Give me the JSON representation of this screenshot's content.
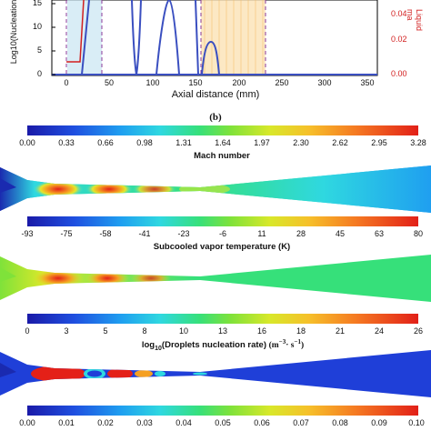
{
  "top_plot": {
    "y_ticks_left": [
      "15",
      "10",
      "5",
      "0"
    ],
    "y_label_left": "Log10(Nucleation",
    "y_ticks_right": [
      "0.04",
      "0.02",
      "0.00"
    ],
    "y_label_right": "Liquid ma",
    "x_ticks": [
      "0",
      "50",
      "100",
      "150",
      "200",
      "250",
      "300",
      "350"
    ],
    "x_label": "Axial distance (mm)"
  },
  "panel_label": "(b)",
  "mach": {
    "ticks": [
      "0.00",
      "0.33",
      "0.66",
      "0.98",
      "1.31",
      "1.64",
      "1.97",
      "2.30",
      "2.62",
      "2.95",
      "3.28"
    ],
    "title": "Mach number"
  },
  "subcool": {
    "ticks": [
      "-93",
      "-75",
      "-58",
      "-41",
      "-23",
      "-6",
      "11",
      "28",
      "45",
      "63",
      "80"
    ],
    "title": "Subcooled vapor temperature (K)"
  },
  "nucleation": {
    "ticks": [
      "0",
      "3",
      "5",
      "8",
      "10",
      "13",
      "16",
      "18",
      "21",
      "24",
      "26"
    ],
    "title_main": "log",
    "title_sub": "10",
    "title_rest": "(Droplets nucleation rate)",
    "title_unit": "(m",
    "title_unit_sup1": "−3",
    "title_unit_mid": "· s",
    "title_unit_sup2": "−1",
    "title_unit_end": ")"
  },
  "liquid": {
    "ticks": [
      "0.00",
      "0.01",
      "0.02",
      "0.03",
      "0.04",
      "0.05",
      "0.06",
      "0.07",
      "0.08",
      "0.09",
      "0.10"
    ]
  },
  "colors": {
    "blue_curve": "#3a4fc0",
    "red_curve": "#d21f1f",
    "accent_box": "#f4b860"
  }
}
